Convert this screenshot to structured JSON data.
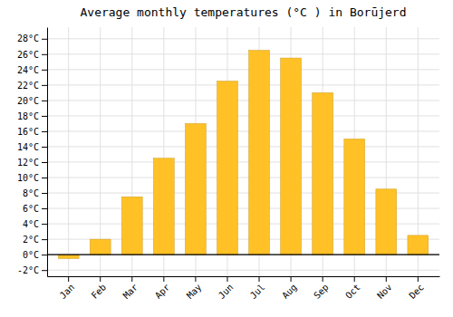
{
  "chart_data": {
    "type": "bar",
    "title": "Average monthly temperatures (°C ) in Borūjerd",
    "categories": [
      "Jan",
      "Feb",
      "Mar",
      "Apr",
      "May",
      "Jun",
      "Jul",
      "Aug",
      "Sep",
      "Oct",
      "Nov",
      "Dec"
    ],
    "values": [
      -0.5,
      2.0,
      7.5,
      12.5,
      17.0,
      22.5,
      26.5,
      25.5,
      21.0,
      15.0,
      8.5,
      2.5
    ],
    "color": "#FFC125",
    "ylim": [
      -2.8,
      29.5
    ],
    "yticks": [
      {
        "value": -2,
        "label": "-2°C"
      },
      {
        "value": 0,
        "label": "0°C"
      },
      {
        "value": 2,
        "label": "2°C"
      },
      {
        "value": 4,
        "label": "4°C"
      },
      {
        "value": 6,
        "label": "6°C"
      },
      {
        "value": 8,
        "label": "8°C"
      },
      {
        "value": 10,
        "label": "10°C"
      },
      {
        "value": 12,
        "label": "12°C"
      },
      {
        "value": 14,
        "label": "14°C"
      },
      {
        "value": 16,
        "label": "16°C"
      },
      {
        "value": 18,
        "label": "18°C"
      },
      {
        "value": 20,
        "label": "20°C"
      },
      {
        "value": 22,
        "label": "22°C"
      },
      {
        "value": 24,
        "label": "24°C"
      },
      {
        "value": 26,
        "label": "26°C"
      },
      {
        "value": 28,
        "label": "28°C"
      }
    ],
    "grid": true
  }
}
